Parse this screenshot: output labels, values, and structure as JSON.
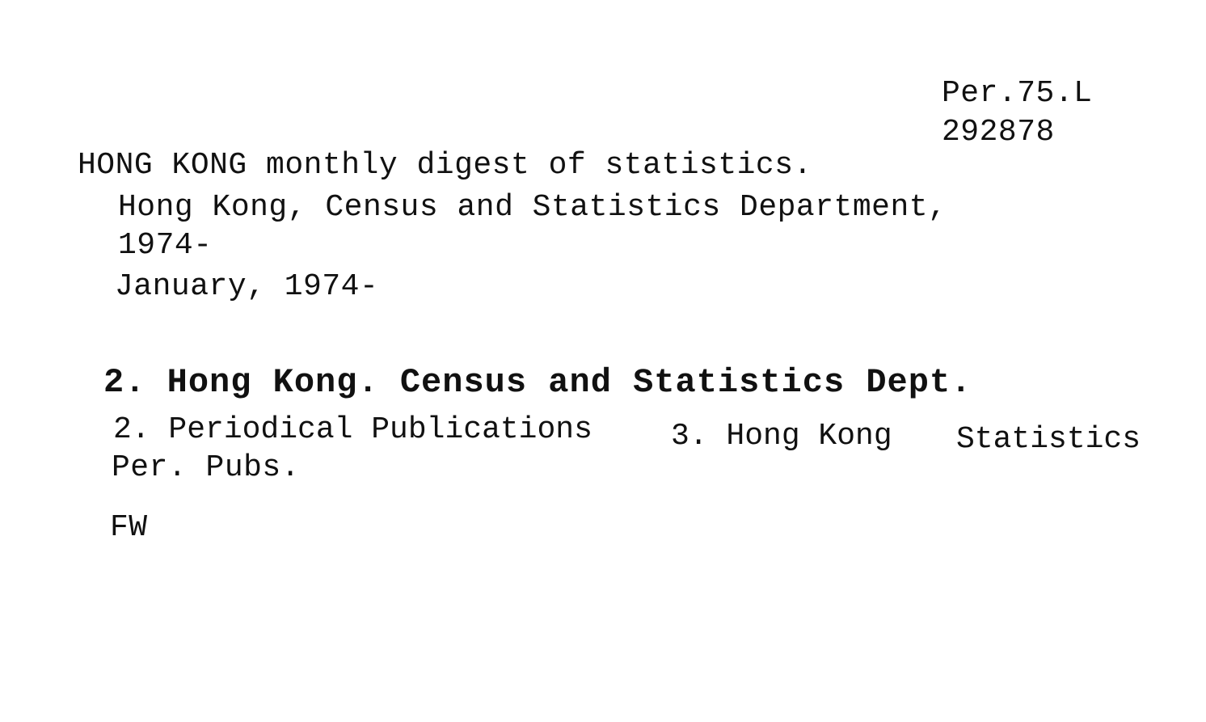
{
  "call_number": {
    "line1": "Per.75.L",
    "line2": "292878"
  },
  "title": "HONG KONG monthly digest of statistics.",
  "imprint": {
    "publisher": "Hong Kong, Census and Statistics Department,",
    "date": "1974-"
  },
  "holdings": "January, 1974-",
  "tracings": {
    "added_entry": "2. Hong Kong. Census and Statistics Dept.",
    "subjects": {
      "s2": "2. Periodical Publications",
      "s3": "3. Hong Kong",
      "s3b": "Statistics"
    },
    "subjects_cont": "Per. Pubs."
  },
  "initials": "FW"
}
